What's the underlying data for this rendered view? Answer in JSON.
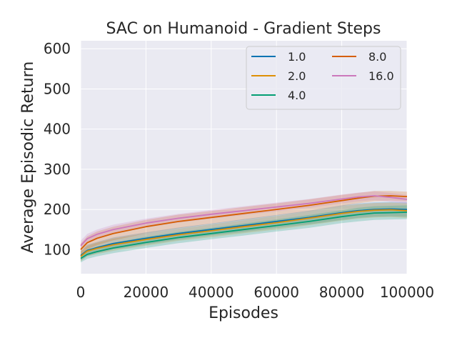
{
  "chart_data": {
    "type": "line",
    "title": "SAC on Humanoid - Gradient Steps",
    "xlabel": "Episodes",
    "ylabel": "Average Episodic Return",
    "xlim": [
      0,
      100000
    ],
    "ylim": [
      40,
      620
    ],
    "xticks": [
      0,
      20000,
      40000,
      60000,
      80000,
      100000
    ],
    "xtick_labels": [
      "0",
      "20000",
      "40000",
      "60000",
      "80000",
      "100000"
    ],
    "yticks": [
      100,
      200,
      300,
      400,
      500,
      600
    ],
    "ytick_labels": [
      "100",
      "200",
      "300",
      "400",
      "500",
      "600"
    ],
    "grid": true,
    "legend_position": "top-right",
    "legend_columns": 2,
    "x": [
      0,
      2000,
      5000,
      10000,
      20000,
      30000,
      40000,
      50000,
      60000,
      70000,
      80000,
      85000,
      90000,
      95000,
      100000
    ],
    "series": [
      {
        "name": "1.0",
        "color": "#0173b2",
        "values": [
          85,
          98,
          105,
          115,
          128,
          140,
          150,
          160,
          170,
          180,
          192,
          197,
          200,
          201,
          200
        ],
        "band": [
          12,
          14,
          14,
          15,
          15,
          15,
          15,
          16,
          16,
          17,
          18,
          18,
          18,
          18,
          18
        ]
      },
      {
        "name": "2.0",
        "color": "#de8f05",
        "values": [
          83,
          96,
          103,
          112,
          125,
          137,
          147,
          157,
          167,
          178,
          190,
          195,
          198,
          199,
          197
        ],
        "band": [
          12,
          13,
          14,
          15,
          15,
          15,
          16,
          16,
          17,
          17,
          18,
          18,
          18,
          18,
          18
        ]
      },
      {
        "name": "4.0",
        "color": "#029e73",
        "values": [
          78,
          88,
          95,
          104,
          118,
          130,
          140,
          150,
          160,
          170,
          182,
          187,
          191,
          192,
          193
        ],
        "band": [
          10,
          11,
          12,
          13,
          14,
          14,
          14,
          15,
          15,
          16,
          16,
          17,
          17,
          17,
          17
        ]
      },
      {
        "name": "8.0",
        "color": "#d55e00",
        "values": [
          100,
          117,
          128,
          140,
          157,
          170,
          180,
          190,
          200,
          210,
          222,
          228,
          233,
          234,
          232
        ],
        "band": [
          15,
          16,
          17,
          17,
          17,
          17,
          16,
          16,
          15,
          15,
          14,
          13,
          13,
          12,
          12
        ]
      },
      {
        "name": "16.0",
        "color": "#cc78bc",
        "values": [
          110,
          127,
          138,
          150,
          166,
          178,
          188,
          197,
          206,
          215,
          226,
          231,
          234,
          230,
          225
        ],
        "band": [
          12,
          12,
          12,
          12,
          11,
          11,
          11,
          11,
          11,
          11,
          11,
          11,
          11,
          11,
          11
        ]
      }
    ]
  }
}
